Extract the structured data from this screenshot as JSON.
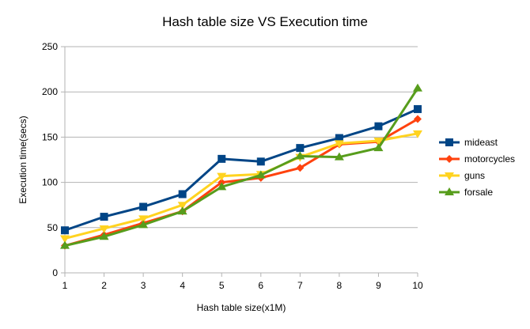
{
  "chart_data": {
    "type": "line",
    "title": "Hash table size VS Execution time",
    "xlabel": "Hash table size(x1M)",
    "ylabel": "Execution time(secs)",
    "x": [
      1,
      2,
      3,
      4,
      5,
      6,
      7,
      8,
      9,
      10
    ],
    "ylim": [
      0,
      250
    ],
    "yticks": [
      0,
      50,
      100,
      150,
      200,
      250
    ],
    "grid": "horizontal",
    "legend_position": "right",
    "series": [
      {
        "name": "mideast",
        "color": "#004586",
        "marker": "square",
        "values": [
          47,
          62,
          73,
          87,
          126,
          123,
          138,
          149,
          162,
          181
        ]
      },
      {
        "name": "motorcycles",
        "color": "#ff420e",
        "marker": "diamond",
        "values": [
          30,
          42,
          55,
          68,
          100,
          105,
          116,
          142,
          145,
          170
        ]
      },
      {
        "name": "guns",
        "color": "#ffd320",
        "marker": "triangle-down",
        "values": [
          38,
          49,
          60,
          75,
          107,
          109,
          128,
          143,
          146,
          154
        ]
      },
      {
        "name": "forsale",
        "color": "#579d1c",
        "marker": "triangle-up",
        "values": [
          30,
          40,
          53,
          68,
          95,
          108,
          129,
          128,
          138,
          204
        ]
      }
    ]
  }
}
